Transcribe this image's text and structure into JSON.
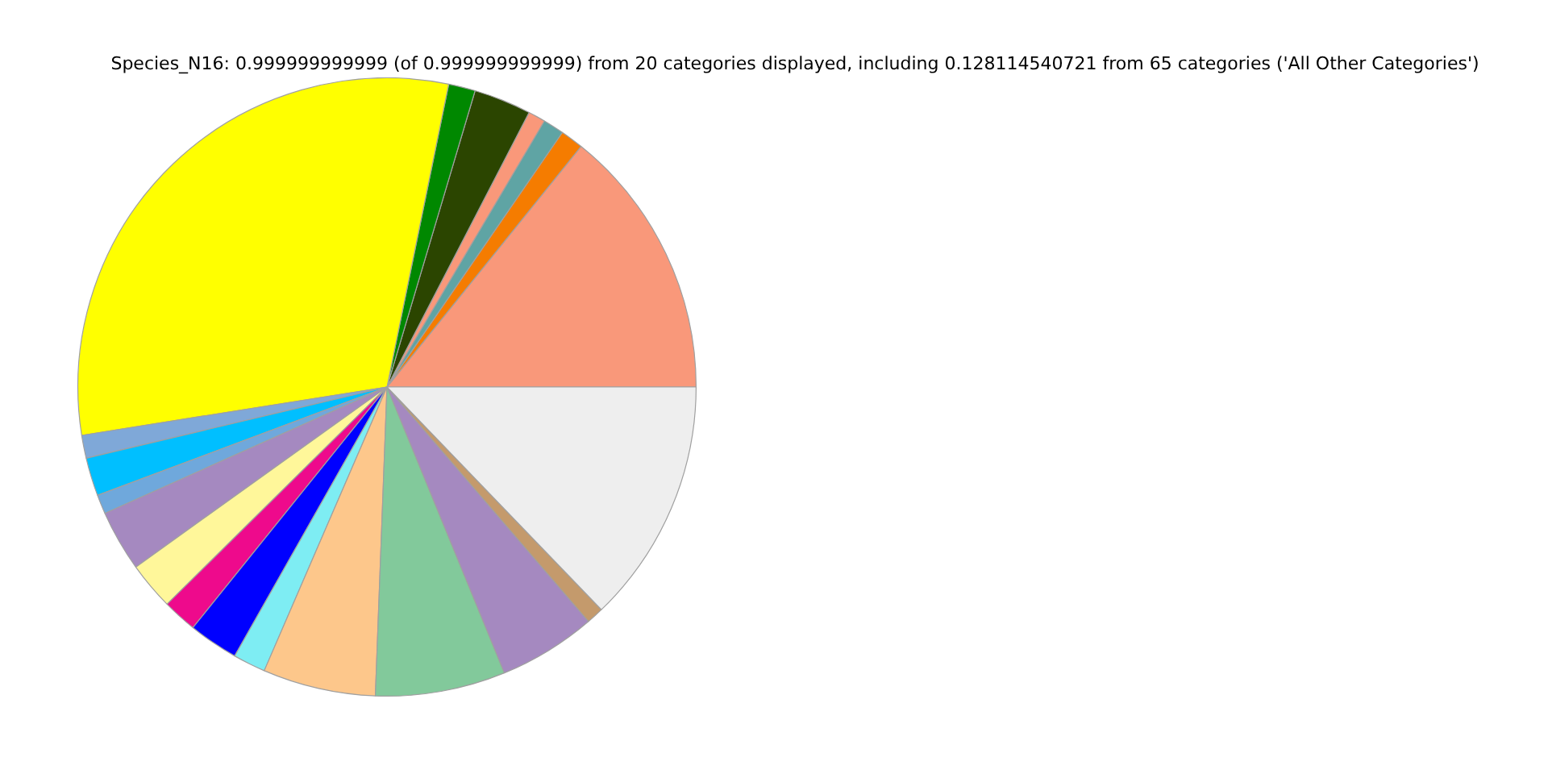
{
  "chart_data": {
    "type": "pie",
    "title": "Species_N16: 0.999999999999 (of 0.999999999999) from 20 categories displayed, including 0.128114540721 from 65 categories ('All Other Categories')",
    "categories": [
      null,
      null,
      null,
      null,
      null,
      null,
      null,
      null,
      null,
      null,
      null,
      null,
      null,
      null,
      null,
      null,
      null,
      null,
      null,
      null
    ],
    "values": [
      14.2,
      1.2,
      1.1,
      0.9,
      3.0,
      1.4,
      30.7,
      1.2,
      2.0,
      1.0,
      3.2,
      2.5,
      1.8,
      2.6,
      1.7,
      5.9,
      6.8,
      5.1,
      0.9,
      12.8
    ],
    "colors": [
      "#f9987a",
      "#f57c00",
      "#5fa4a4",
      "#f9987a",
      "#2b4500",
      "#008800",
      "#ffff00",
      "#7fa8d8",
      "#00bfff",
      "#6fa8dc",
      "#a589c0",
      "#fff79a",
      "#ee0a8c",
      "#0000ff",
      "#7eedf3",
      "#fdc78b",
      "#82c99b",
      "#a589c0",
      "#c49a6c",
      "#eeeeee"
    ],
    "legend": false
  }
}
